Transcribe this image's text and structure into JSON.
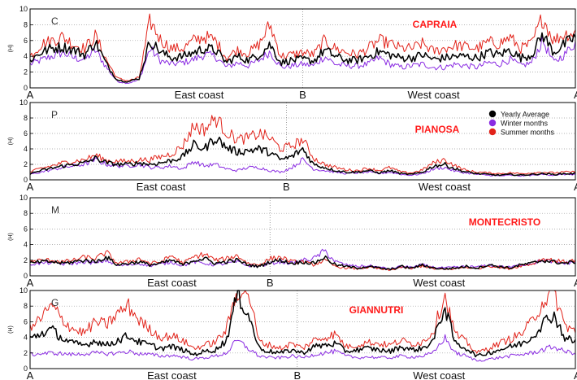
{
  "series_styles": {
    "yearly": {
      "label": "Yearly Average",
      "color": "#000000"
    },
    "winter": {
      "label": "Winter months",
      "color": "#8a2be2"
    },
    "summer": {
      "label": "Summer months",
      "color": "#e2231a"
    }
  },
  "chart_data": [
    {
      "type": "line",
      "panel_label": "C",
      "title": "CAPRAIA",
      "ylabel": "(H)",
      "ylim": [
        0,
        10
      ],
      "yticks": [
        0,
        2,
        4,
        6,
        8,
        10
      ],
      "x": [
        0,
        2,
        4,
        6,
        8,
        10,
        12,
        14,
        16,
        18,
        20,
        22,
        24,
        26,
        28,
        30,
        32,
        34,
        36,
        38,
        40,
        42,
        44,
        46,
        48,
        50,
        52,
        54,
        56,
        58,
        60,
        62,
        64,
        66,
        68,
        70,
        72,
        74,
        76,
        78,
        80,
        82,
        84,
        86,
        88,
        90,
        92,
        94,
        96,
        98,
        100
      ],
      "axis_points": [
        {
          "label": "A",
          "x": 0
        },
        {
          "label": "B",
          "x": 50
        },
        {
          "label": "A",
          "x": 100
        }
      ],
      "coast_labels": [
        {
          "label": "East coast",
          "x": 31
        },
        {
          "label": "West coast",
          "x": 74
        }
      ],
      "legend": false,
      "series": [
        {
          "key": "yearly",
          "values": [
            3.5,
            4.5,
            5.0,
            5.2,
            4.8,
            4.2,
            5.8,
            3.0,
            1.0,
            0.8,
            1.2,
            6.0,
            4.5,
            3.8,
            4.0,
            4.5,
            5.0,
            4.8,
            3.2,
            4.0,
            3.5,
            4.2,
            5.5,
            3.2,
            3.5,
            3.6,
            3.4,
            4.8,
            4.0,
            3.5,
            3.5,
            4.0,
            4.6,
            4.2,
            3.8,
            3.8,
            4.2,
            3.6,
            3.8,
            4.0,
            4.0,
            3.8,
            4.5,
            4.2,
            4.8,
            3.8,
            4.2,
            6.8,
            4.5,
            5.5,
            6.5
          ]
        },
        {
          "key": "winter",
          "values": [
            3.0,
            3.5,
            4.0,
            4.5,
            3.8,
            3.6,
            4.8,
            2.6,
            0.8,
            0.6,
            1.0,
            5.0,
            3.4,
            3.0,
            3.2,
            3.6,
            4.2,
            4.0,
            2.6,
            3.2,
            2.8,
            3.5,
            4.6,
            2.6,
            2.8,
            3.0,
            2.8,
            4.0,
            3.0,
            2.8,
            2.8,
            3.0,
            3.8,
            3.0,
            2.6,
            2.8,
            3.0,
            2.6,
            2.6,
            3.0,
            2.8,
            2.6,
            3.2,
            3.0,
            3.6,
            2.8,
            3.2,
            6.0,
            3.2,
            4.2,
            5.8
          ]
        },
        {
          "key": "summer",
          "values": [
            4.0,
            5.5,
            6.0,
            6.5,
            5.5,
            5.0,
            6.6,
            3.5,
            1.2,
            0.9,
            1.3,
            8.5,
            6.0,
            5.0,
            5.0,
            6.0,
            6.5,
            6.0,
            3.8,
            4.8,
            4.4,
            5.5,
            8.0,
            4.0,
            4.2,
            4.5,
            4.2,
            6.0,
            5.0,
            4.5,
            4.2,
            5.0,
            6.0,
            5.6,
            5.0,
            5.0,
            5.6,
            4.6,
            5.0,
            5.4,
            5.2,
            5.0,
            5.8,
            5.6,
            6.4,
            5.0,
            5.6,
            9.0,
            6.0,
            6.8,
            7.0
          ]
        }
      ]
    },
    {
      "type": "line",
      "panel_label": "P",
      "title": "PIANOSA",
      "ylabel": "(H)",
      "ylim": [
        0,
        10
      ],
      "yticks": [
        0,
        2,
        4,
        6,
        8,
        10
      ],
      "x": [
        0,
        2,
        4,
        6,
        8,
        10,
        12,
        14,
        16,
        18,
        20,
        22,
        24,
        26,
        28,
        30,
        32,
        34,
        36,
        38,
        40,
        42,
        44,
        46,
        48,
        50,
        52,
        54,
        56,
        58,
        60,
        62,
        64,
        66,
        68,
        70,
        72,
        74,
        76,
        78,
        80,
        82,
        84,
        86,
        88,
        90,
        92,
        94,
        96,
        98,
        100
      ],
      "axis_points": [
        {
          "label": "A",
          "x": 0
        },
        {
          "label": "B",
          "x": 47
        },
        {
          "label": "A",
          "x": 100
        }
      ],
      "coast_labels": [
        {
          "label": "East coast",
          "x": 24
        },
        {
          "label": "West coast",
          "x": 76
        }
      ],
      "legend": true,
      "legend_position": "top-right",
      "series": [
        {
          "key": "yearly",
          "values": [
            0.8,
            1.2,
            1.5,
            1.8,
            2.0,
            2.2,
            2.8,
            2.2,
            2.0,
            2.0,
            2.2,
            2.0,
            2.2,
            2.5,
            3.0,
            4.5,
            4.0,
            5.5,
            4.2,
            3.6,
            3.8,
            4.0,
            3.5,
            2.6,
            3.0,
            4.0,
            2.0,
            1.6,
            1.2,
            1.0,
            1.0,
            1.2,
            0.9,
            1.2,
            0.8,
            0.7,
            1.0,
            1.8,
            2.0,
            1.4,
            1.0,
            0.8,
            0.7,
            0.6,
            0.7,
            0.6,
            0.7,
            0.8,
            0.7,
            0.8,
            0.8
          ]
        },
        {
          "key": "winter",
          "values": [
            0.7,
            1.0,
            1.3,
            1.6,
            1.8,
            2.0,
            2.6,
            2.0,
            1.8,
            1.8,
            2.0,
            1.6,
            1.6,
            1.8,
            1.4,
            2.4,
            1.8,
            2.0,
            1.4,
            1.2,
            1.6,
            1.6,
            1.2,
            1.0,
            1.6,
            2.6,
            1.4,
            1.2,
            1.0,
            0.8,
            0.9,
            1.0,
            0.8,
            1.0,
            0.7,
            0.6,
            0.8,
            1.4,
            1.6,
            1.1,
            0.9,
            0.7,
            0.6,
            0.5,
            0.6,
            0.5,
            0.6,
            0.7,
            0.6,
            0.7,
            0.7
          ]
        },
        {
          "key": "summer",
          "values": [
            1.0,
            1.5,
            1.8,
            2.2,
            2.4,
            2.6,
            3.2,
            2.5,
            2.4,
            2.4,
            2.6,
            2.6,
            3.0,
            3.4,
            4.4,
            7.0,
            6.5,
            8.0,
            6.2,
            5.2,
            5.4,
            6.0,
            5.4,
            4.0,
            4.4,
            5.2,
            2.8,
            2.0,
            1.6,
            1.3,
            1.2,
            1.5,
            1.2,
            1.6,
            1.0,
            0.9,
            1.3,
            2.2,
            2.6,
            1.8,
            1.2,
            1.0,
            0.9,
            0.8,
            0.9,
            0.8,
            0.9,
            1.0,
            0.9,
            1.0,
            1.0
          ]
        }
      ]
    },
    {
      "type": "line",
      "panel_label": "M",
      "title": "MONTECRISTO",
      "ylabel": "(H)",
      "ylim": [
        0,
        10
      ],
      "yticks": [
        0,
        2,
        4,
        6,
        8,
        10
      ],
      "x": [
        0,
        2,
        4,
        6,
        8,
        10,
        12,
        14,
        16,
        18,
        20,
        22,
        24,
        26,
        28,
        30,
        32,
        34,
        36,
        38,
        40,
        42,
        44,
        46,
        48,
        50,
        52,
        54,
        56,
        58,
        60,
        62,
        64,
        66,
        68,
        70,
        72,
        74,
        76,
        78,
        80,
        82,
        84,
        86,
        88,
        90,
        92,
        94,
        96,
        98,
        100
      ],
      "axis_points": [
        {
          "label": "A",
          "x": 0
        },
        {
          "label": "B",
          "x": 44
        },
        {
          "label": "A",
          "x": 100
        }
      ],
      "coast_labels": [
        {
          "label": "East coast",
          "x": 26
        },
        {
          "label": "West coast",
          "x": 75
        }
      ],
      "legend": false,
      "series": [
        {
          "key": "yearly",
          "values": [
            1.6,
            1.8,
            1.8,
            1.6,
            1.8,
            2.0,
            1.8,
            2.4,
            1.4,
            1.6,
            1.8,
            1.4,
            1.6,
            2.0,
            1.4,
            2.0,
            2.2,
            1.6,
            1.8,
            2.0,
            1.4,
            1.2,
            1.8,
            2.0,
            1.6,
            1.8,
            1.6,
            2.4,
            1.4,
            1.2,
            1.0,
            1.2,
            1.0,
            0.8,
            1.2,
            1.0,
            1.4,
            1.0,
            0.9,
            1.0,
            1.2,
            1.0,
            1.4,
            1.2,
            1.0,
            1.4,
            1.6,
            2.0,
            1.8,
            1.6,
            1.8
          ]
        },
        {
          "key": "winter",
          "values": [
            1.5,
            1.6,
            1.7,
            1.5,
            1.6,
            1.8,
            1.6,
            2.0,
            1.3,
            1.4,
            1.6,
            1.3,
            1.5,
            1.8,
            1.3,
            1.8,
            1.6,
            1.4,
            1.6,
            1.8,
            1.3,
            1.2,
            1.6,
            1.8,
            1.6,
            2.0,
            2.2,
            3.2,
            1.8,
            1.4,
            1.2,
            1.3,
            1.1,
            0.9,
            1.2,
            1.1,
            1.4,
            1.1,
            1.0,
            1.1,
            1.2,
            1.1,
            1.4,
            1.2,
            1.1,
            1.4,
            1.6,
            2.0,
            1.8,
            1.6,
            1.8
          ]
        },
        {
          "key": "summer",
          "values": [
            1.8,
            2.0,
            2.0,
            1.8,
            2.0,
            2.4,
            2.2,
            3.0,
            1.6,
            1.8,
            2.2,
            1.6,
            1.8,
            2.6,
            1.6,
            2.4,
            2.8,
            2.0,
            2.2,
            2.6,
            1.6,
            1.4,
            2.2,
            2.4,
            1.8,
            1.8,
            1.4,
            2.0,
            1.2,
            1.0,
            0.9,
            1.1,
            0.9,
            0.7,
            1.1,
            0.9,
            1.3,
            0.9,
            0.8,
            0.9,
            1.1,
            0.9,
            1.3,
            1.1,
            0.9,
            1.3,
            1.5,
            2.2,
            2.0,
            1.8,
            2.0
          ]
        }
      ]
    },
    {
      "type": "line",
      "panel_label": "G",
      "title": "GIANNUTRI",
      "ylabel": "(H)",
      "ylim": [
        0,
        10
      ],
      "yticks": [
        0,
        2,
        4,
        6,
        8,
        10
      ],
      "x": [
        0,
        2,
        4,
        6,
        8,
        10,
        12,
        14,
        16,
        18,
        20,
        22,
        24,
        26,
        28,
        30,
        32,
        34,
        36,
        38,
        40,
        42,
        44,
        46,
        48,
        50,
        52,
        54,
        56,
        58,
        60,
        62,
        64,
        66,
        68,
        70,
        72,
        74,
        76,
        78,
        80,
        82,
        84,
        86,
        88,
        90,
        92,
        94,
        96,
        98,
        100
      ],
      "axis_points": [
        {
          "label": "A",
          "x": 0
        },
        {
          "label": "B",
          "x": 49
        },
        {
          "label": "A",
          "x": 100
        }
      ],
      "coast_labels": [
        {
          "label": "East coast",
          "x": 26
        },
        {
          "label": "West coast",
          "x": 75
        }
      ],
      "legend": false,
      "series": [
        {
          "key": "yearly",
          "values": [
            3.8,
            4.5,
            5.0,
            3.8,
            3.2,
            3.0,
            3.6,
            3.0,
            3.6,
            4.2,
            3.4,
            3.0,
            2.6,
            2.8,
            2.4,
            1.8,
            2.2,
            2.4,
            3.6,
            9.5,
            7.0,
            2.6,
            2.2,
            2.0,
            2.4,
            2.0,
            2.8,
            3.0,
            3.2,
            2.2,
            2.4,
            2.6,
            2.4,
            2.2,
            2.8,
            2.4,
            2.6,
            3.6,
            8.0,
            3.2,
            2.6,
            1.6,
            2.0,
            2.4,
            2.8,
            3.2,
            4.0,
            5.8,
            7.0,
            4.0,
            3.4
          ]
        },
        {
          "key": "winter",
          "values": [
            1.8,
            1.9,
            2.0,
            1.9,
            1.8,
            1.9,
            2.0,
            1.9,
            2.0,
            2.2,
            1.9,
            1.8,
            1.6,
            1.7,
            1.5,
            1.2,
            1.4,
            1.6,
            2.0,
            3.6,
            2.6,
            1.6,
            1.4,
            1.4,
            1.6,
            1.4,
            1.8,
            2.0,
            2.2,
            1.6,
            1.4,
            1.5,
            1.4,
            1.4,
            1.6,
            1.5,
            1.6,
            2.0,
            4.0,
            2.0,
            1.6,
            1.0,
            1.2,
            1.4,
            1.6,
            1.8,
            2.0,
            2.4,
            2.8,
            2.2,
            2.0
          ]
        },
        {
          "key": "summer",
          "values": [
            5.0,
            6.5,
            8.0,
            6.2,
            5.0,
            4.6,
            6.0,
            5.6,
            7.0,
            8.0,
            6.2,
            5.0,
            4.0,
            4.2,
            3.6,
            2.6,
            3.0,
            3.4,
            5.0,
            10.0,
            10.0,
            3.4,
            3.0,
            2.6,
            3.2,
            2.6,
            3.6,
            4.0,
            4.4,
            2.8,
            3.0,
            3.4,
            3.2,
            3.0,
            3.6,
            3.2,
            3.4,
            4.8,
            9.5,
            4.4,
            3.4,
            2.0,
            2.6,
            3.2,
            3.8,
            4.4,
            6.0,
            8.5,
            10.0,
            5.6,
            4.8
          ]
        }
      ]
    }
  ]
}
